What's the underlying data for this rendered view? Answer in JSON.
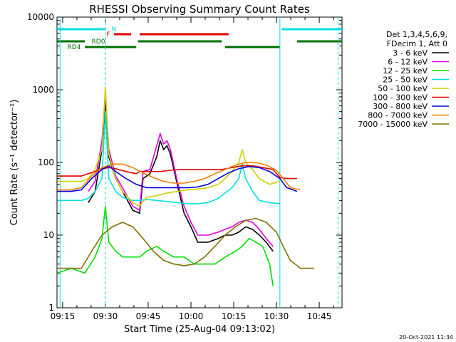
{
  "chart_data": {
    "type": "line",
    "title": "RHESSI Observing Summary Count Rates",
    "xlabel": "Start Time (25-Aug-04 09:13:02)",
    "ylabel": "Count Rate (s⁻¹ detector⁻¹)",
    "footer": "20-Oct-2021 11:34",
    "yscale": "log",
    "xlim": [
      9.217,
      10.883
    ],
    "ylim": [
      1,
      10000
    ],
    "x_ticks": [
      "09:15",
      "09:30",
      "09:45",
      "10:00",
      "10:15",
      "10:30",
      "10:45"
    ],
    "y_ticks": [
      "1",
      "10",
      "100",
      "1000",
      "10000"
    ],
    "legend_header": [
      "Det 1,3,4,5,6,9,",
      "FDecim 1, Att 0"
    ],
    "legend_position": "right",
    "flags": [
      {
        "name": "N",
        "color": "#00e0e0",
        "segments": [
          [
            9.217,
            9.5
          ],
          [
            10.53,
            10.883
          ]
        ]
      },
      {
        "name": "F",
        "color": "#e00000",
        "segments": [
          [
            9.55,
            9.65
          ],
          [
            9.7,
            10.22
          ]
        ]
      },
      {
        "name": "RD0",
        "color": "#007000",
        "segments": [
          [
            9.217,
            9.38
          ],
          [
            9.69,
            10.18
          ],
          [
            10.62,
            10.883
          ]
        ]
      },
      {
        "name": "RD4",
        "color": "#007000",
        "segments": [
          [
            9.38,
            9.68
          ],
          [
            10.2,
            10.52
          ]
        ]
      }
    ],
    "vertical_lines": [
      {
        "x": 9.235,
        "style": "solid",
        "color": "#00e0e0"
      },
      {
        "x": 9.5,
        "style": "dashed",
        "color": "#00e0e0"
      },
      {
        "x": 10.52,
        "style": "solid",
        "color": "#00e0e0"
      },
      {
        "x": 10.86,
        "style": "dashed",
        "color": "#00e0e0"
      }
    ],
    "series": [
      {
        "name": "3 - 6 keV",
        "color": "#000000",
        "points": [
          [
            9.4,
            28
          ],
          [
            9.44,
            40
          ],
          [
            9.48,
            150
          ],
          [
            9.5,
            700
          ],
          [
            9.52,
            120
          ],
          [
            9.56,
            60
          ],
          [
            9.6,
            40
          ],
          [
            9.66,
            22
          ],
          [
            9.7,
            20
          ],
          [
            9.72,
            60
          ],
          [
            9.76,
            70
          ],
          [
            9.8,
            120
          ],
          [
            9.82,
            200
          ],
          [
            9.84,
            150
          ],
          [
            9.86,
            170
          ],
          [
            9.88,
            130
          ],
          [
            9.92,
            50
          ],
          [
            9.96,
            20
          ],
          [
            10.0,
            13
          ],
          [
            10.04,
            8
          ],
          [
            10.1,
            8
          ],
          [
            10.16,
            9
          ],
          [
            10.2,
            10
          ],
          [
            10.24,
            10
          ],
          [
            10.28,
            11
          ],
          [
            10.32,
            13
          ],
          [
            10.36,
            12
          ],
          [
            10.4,
            10
          ],
          [
            10.44,
            8
          ],
          [
            10.48,
            6
          ]
        ]
      },
      {
        "name": "6 - 12 keV",
        "color": "#e000e0",
        "points": [
          [
            9.4,
            40
          ],
          [
            9.44,
            55
          ],
          [
            9.48,
            200
          ],
          [
            9.5,
            900
          ],
          [
            9.52,
            150
          ],
          [
            9.56,
            65
          ],
          [
            9.6,
            45
          ],
          [
            9.66,
            25
          ],
          [
            9.7,
            22
          ],
          [
            9.72,
            75
          ],
          [
            9.76,
            80
          ],
          [
            9.8,
            170
          ],
          [
            9.82,
            250
          ],
          [
            9.84,
            180
          ],
          [
            9.86,
            200
          ],
          [
            9.88,
            150
          ],
          [
            9.92,
            55
          ],
          [
            9.96,
            25
          ],
          [
            10.0,
            15
          ],
          [
            10.04,
            10
          ],
          [
            10.1,
            10
          ],
          [
            10.16,
            11
          ],
          [
            10.2,
            12
          ],
          [
            10.24,
            13
          ],
          [
            10.28,
            15
          ],
          [
            10.32,
            16
          ],
          [
            10.36,
            15
          ],
          [
            10.4,
            12
          ],
          [
            10.44,
            9
          ],
          [
            10.48,
            7
          ]
        ]
      },
      {
        "name": "12 - 25 keV",
        "color": "#00e000",
        "points": [
          [
            9.22,
            3
          ],
          [
            9.3,
            3.5
          ],
          [
            9.38,
            3
          ],
          [
            9.44,
            5
          ],
          [
            9.48,
            9
          ],
          [
            9.5,
            25
          ],
          [
            9.52,
            8
          ],
          [
            9.56,
            6
          ],
          [
            9.6,
            5
          ],
          [
            9.66,
            5
          ],
          [
            9.7,
            5
          ],
          [
            9.74,
            6
          ],
          [
            9.8,
            7
          ],
          [
            9.84,
            6
          ],
          [
            9.9,
            5
          ],
          [
            9.96,
            5
          ],
          [
            10.02,
            4
          ],
          [
            10.08,
            4
          ],
          [
            10.14,
            4
          ],
          [
            10.2,
            5
          ],
          [
            10.26,
            6
          ],
          [
            10.3,
            7
          ],
          [
            10.34,
            9
          ],
          [
            10.38,
            8
          ],
          [
            10.42,
            7
          ],
          [
            10.46,
            4
          ],
          [
            10.48,
            2
          ]
        ]
      },
      {
        "name": "25 - 50 keV",
        "color": "#00e0e0",
        "points": [
          [
            9.22,
            30
          ],
          [
            9.3,
            30
          ],
          [
            9.36,
            30
          ],
          [
            9.4,
            32
          ],
          [
            9.44,
            40
          ],
          [
            9.48,
            60
          ],
          [
            9.5,
            500
          ],
          [
            9.52,
            60
          ],
          [
            9.56,
            40
          ],
          [
            9.6,
            33
          ],
          [
            9.66,
            30
          ],
          [
            9.7,
            30
          ],
          [
            9.74,
            31
          ],
          [
            9.8,
            30
          ],
          [
            9.86,
            29
          ],
          [
            9.92,
            28
          ],
          [
            9.98,
            27
          ],
          [
            10.04,
            27
          ],
          [
            10.1,
            28
          ],
          [
            10.16,
            32
          ],
          [
            10.2,
            38
          ],
          [
            10.24,
            45
          ],
          [
            10.28,
            60
          ],
          [
            10.3,
            95
          ],
          [
            10.32,
            60
          ],
          [
            10.36,
            40
          ],
          [
            10.4,
            30
          ],
          [
            10.46,
            28
          ],
          [
            10.52,
            27
          ]
        ]
      },
      {
        "name": "50 - 100 keV",
        "color": "#d0d000",
        "points": [
          [
            9.22,
            55
          ],
          [
            9.3,
            55
          ],
          [
            9.36,
            55
          ],
          [
            9.4,
            60
          ],
          [
            9.44,
            80
          ],
          [
            9.48,
            150
          ],
          [
            9.5,
            1100
          ],
          [
            9.52,
            130
          ],
          [
            9.56,
            60
          ],
          [
            9.6,
            40
          ],
          [
            9.66,
            28
          ],
          [
            9.7,
            25
          ],
          [
            9.74,
            33
          ],
          [
            9.8,
            35
          ],
          [
            9.86,
            38
          ],
          [
            9.92,
            40
          ],
          [
            9.98,
            42
          ],
          [
            10.04,
            43
          ],
          [
            10.1,
            45
          ],
          [
            10.16,
            50
          ],
          [
            10.2,
            60
          ],
          [
            10.24,
            75
          ],
          [
            10.28,
            100
          ],
          [
            10.3,
            150
          ],
          [
            10.32,
            100
          ],
          [
            10.36,
            80
          ],
          [
            10.4,
            60
          ],
          [
            10.46,
            50
          ],
          [
            10.52,
            55
          ]
        ]
      },
      {
        "name": "100 - 300 keV",
        "color": "#e00000",
        "points": [
          [
            9.22,
            65
          ],
          [
            9.3,
            65
          ],
          [
            9.36,
            65
          ],
          [
            9.4,
            70
          ],
          [
            9.44,
            75
          ],
          [
            9.48,
            82
          ],
          [
            9.52,
            85
          ],
          [
            9.56,
            82
          ],
          [
            9.62,
            75
          ],
          [
            9.68,
            70
          ],
          [
            9.7,
            75
          ],
          [
            9.76,
            75
          ],
          [
            9.82,
            75
          ],
          [
            9.88,
            78
          ],
          [
            9.94,
            80
          ],
          [
            10.0,
            80
          ],
          [
            10.06,
            80
          ],
          [
            10.12,
            80
          ],
          [
            10.18,
            80
          ],
          [
            10.24,
            85
          ],
          [
            10.3,
            90
          ],
          [
            10.36,
            90
          ],
          [
            10.42,
            85
          ],
          [
            10.48,
            80
          ],
          [
            10.52,
            62
          ],
          [
            10.56,
            60
          ],
          [
            10.62,
            60
          ]
        ]
      },
      {
        "name": "300 - 800 keV",
        "color": "#0000e0",
        "points": [
          [
            9.22,
            40
          ],
          [
            9.3,
            40
          ],
          [
            9.36,
            42
          ],
          [
            9.42,
            60
          ],
          [
            9.48,
            80
          ],
          [
            9.52,
            90
          ],
          [
            9.56,
            75
          ],
          [
            9.62,
            60
          ],
          [
            9.68,
            50
          ],
          [
            9.74,
            45
          ],
          [
            9.8,
            45
          ],
          [
            9.86,
            45
          ],
          [
            9.92,
            45
          ],
          [
            9.98,
            45
          ],
          [
            10.04,
            46
          ],
          [
            10.1,
            50
          ],
          [
            10.16,
            60
          ],
          [
            10.22,
            72
          ],
          [
            10.28,
            82
          ],
          [
            10.34,
            88
          ],
          [
            10.4,
            85
          ],
          [
            10.46,
            75
          ],
          [
            10.52,
            60
          ],
          [
            10.56,
            45
          ],
          [
            10.62,
            40
          ]
        ]
      },
      {
        "name": "800 - 7000 keV",
        "color": "#f08000",
        "points": [
          [
            9.22,
            42
          ],
          [
            9.3,
            42
          ],
          [
            9.36,
            45
          ],
          [
            9.42,
            65
          ],
          [
            9.48,
            85
          ],
          [
            9.54,
            95
          ],
          [
            9.6,
            95
          ],
          [
            9.66,
            85
          ],
          [
            9.72,
            72
          ],
          [
            9.78,
            62
          ],
          [
            9.84,
            55
          ],
          [
            9.9,
            52
          ],
          [
            9.96,
            52
          ],
          [
            10.02,
            55
          ],
          [
            10.08,
            60
          ],
          [
            10.14,
            70
          ],
          [
            10.2,
            80
          ],
          [
            10.26,
            92
          ],
          [
            10.32,
            100
          ],
          [
            10.38,
            100
          ],
          [
            10.44,
            92
          ],
          [
            10.5,
            78
          ],
          [
            10.54,
            60
          ],
          [
            10.58,
            45
          ],
          [
            10.64,
            42
          ]
        ]
      },
      {
        "name": "7000 - 15000 keV",
        "color": "#807000",
        "points": [
          [
            9.22,
            3.5
          ],
          [
            9.3,
            3.5
          ],
          [
            9.36,
            3.5
          ],
          [
            9.42,
            6
          ],
          [
            9.48,
            10
          ],
          [
            9.54,
            13
          ],
          [
            9.6,
            15
          ],
          [
            9.66,
            13
          ],
          [
            9.72,
            9
          ],
          [
            9.78,
            6
          ],
          [
            9.84,
            4.5
          ],
          [
            9.9,
            4
          ],
          [
            9.96,
            3.8
          ],
          [
            10.02,
            4
          ],
          [
            10.08,
            5
          ],
          [
            10.14,
            7
          ],
          [
            10.2,
            10
          ],
          [
            10.26,
            13
          ],
          [
            10.32,
            16
          ],
          [
            10.38,
            17
          ],
          [
            10.44,
            15
          ],
          [
            10.5,
            11
          ],
          [
            10.54,
            7
          ],
          [
            10.58,
            4.5
          ],
          [
            10.64,
            3.5
          ],
          [
            10.72,
            3.5
          ]
        ]
      }
    ]
  }
}
